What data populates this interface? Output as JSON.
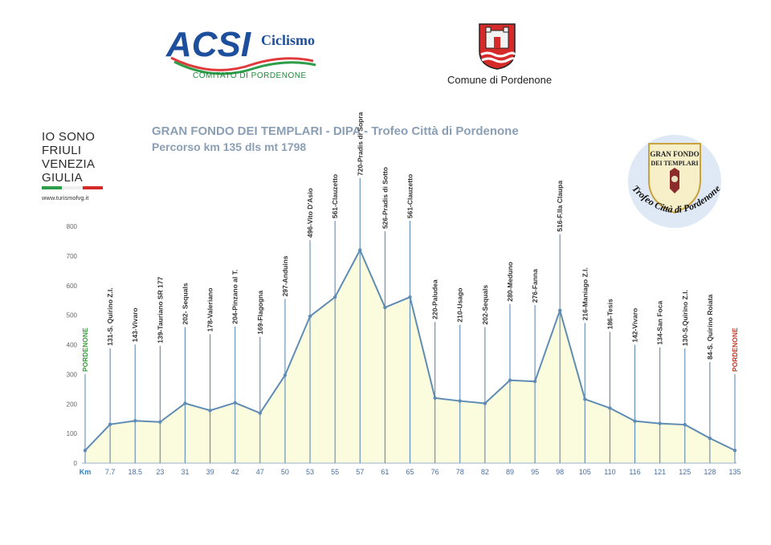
{
  "header": {
    "acsi_word": "ACSI",
    "acsi_ciclismo": "Ciclismo",
    "acsi_committee": "COMITATO DI PORDENONE",
    "comune_label": "Comune di Pordenone",
    "fvg_lines": [
      "IO SONO",
      "FRIULI",
      "VENEZIA",
      "GIULIA"
    ],
    "fvg_url": "www.turismofvg.it",
    "badge_top": "GRAN FONDO",
    "badge_mid": "DEI TEMPLARI",
    "badge_bottom": "Trofeo Città di Pordenone"
  },
  "colors": {
    "area_fill": "#fbfbde",
    "profile_line": "#5f8cb5",
    "marker_line": "#5f8cb5",
    "axis_text": "#666666",
    "x_tick_text": "#4a6fa0",
    "km_label": "#2d7fc1",
    "start_label": "#3a9a3a",
    "finish_label": "#c0392b",
    "title": "#8a9fb5"
  },
  "chart_data": {
    "type": "area",
    "title": "GRAN FONDO DEI TEMPLARI - DIPA - Trofeo Città di Pordenone",
    "subtitle": "Percorso km 135 dls mt 1798",
    "xlabel": "Km",
    "ylabel": "",
    "ylim": [
      0,
      800
    ],
    "yticks": [
      0,
      100,
      200,
      300,
      400,
      500,
      600,
      700,
      800
    ],
    "x_tick_labels": [
      "7.7",
      "18.5",
      "23",
      "31",
      "39",
      "42",
      "47",
      "50",
      "53",
      "55",
      "57",
      "61",
      "65",
      "76",
      "78",
      "82",
      "89",
      "95",
      "98",
      "105",
      "110",
      "116",
      "121",
      "125",
      "128",
      "135"
    ],
    "points": [
      {
        "km": 0,
        "elev": 43,
        "label": "PORDENONE",
        "kind": "start"
      },
      {
        "km": 7.7,
        "elev": 131,
        "label": "131-S. Quirino Z.I."
      },
      {
        "km": 18.5,
        "elev": 143,
        "label": "143-Vivaro"
      },
      {
        "km": 23,
        "elev": 139,
        "label": "139-Tauriano SR 177"
      },
      {
        "km": 31,
        "elev": 202,
        "label": "202- Sequals"
      },
      {
        "km": 39,
        "elev": 178,
        "label": "178-Valeriano"
      },
      {
        "km": 42,
        "elev": 204,
        "label": "204-Pinzano al T."
      },
      {
        "km": 47,
        "elev": 169,
        "label": "169-Flagogna"
      },
      {
        "km": 50,
        "elev": 297,
        "label": "297-Anduins"
      },
      {
        "km": 53,
        "elev": 496,
        "label": "496-Vito D'Asio"
      },
      {
        "km": 55,
        "elev": 561,
        "label": "561-Clauzetto"
      },
      {
        "km": 57,
        "elev": 720,
        "label": "720-Pradis di Sopra"
      },
      {
        "km": 61,
        "elev": 526,
        "label": "526-Pradis di Sotto"
      },
      {
        "km": 65,
        "elev": 561,
        "label": "561-Clauzetto"
      },
      {
        "km": 76,
        "elev": 220,
        "label": "220-Paludea"
      },
      {
        "km": 78,
        "elev": 210,
        "label": "210-Usago"
      },
      {
        "km": 82,
        "elev": 202,
        "label": "202-Sequals"
      },
      {
        "km": 89,
        "elev": 280,
        "label": "280-Meduno"
      },
      {
        "km": 95,
        "elev": 276,
        "label": "276-Fanna"
      },
      {
        "km": 98,
        "elev": 516,
        "label": "516-F.lla Claupa"
      },
      {
        "km": 105,
        "elev": 216,
        "label": "216-Maniago Z.I."
      },
      {
        "km": 110,
        "elev": 186,
        "label": "186-Tesis"
      },
      {
        "km": 116,
        "elev": 142,
        "label": "142-Vivaro"
      },
      {
        "km": 121,
        "elev": 134,
        "label": "134-San Foca"
      },
      {
        "km": 125,
        "elev": 130,
        "label": "130-S.Quirino Z.I."
      },
      {
        "km": 128,
        "elev": 84,
        "label": "84-S. Quirino Roiata"
      },
      {
        "km": 135,
        "elev": 43,
        "label": "PORDENONE",
        "kind": "finish"
      }
    ]
  }
}
